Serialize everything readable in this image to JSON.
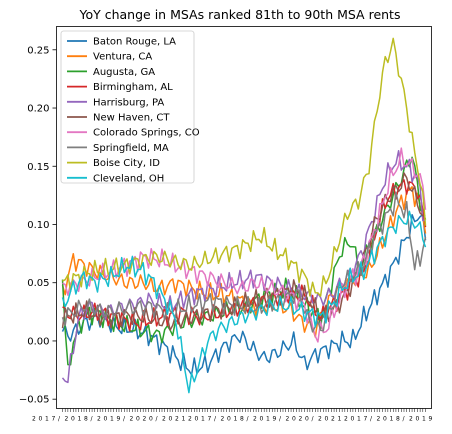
{
  "chart_data": {
    "type": "line",
    "title": "YoY change in MSAs ranked 81th to 90th MSA rents",
    "xlabel": "",
    "ylabel": "",
    "ylim": [
      -0.058,
      0.27
    ],
    "yticks": [
      -0.05,
      0.0,
      0.05,
      0.1,
      0.15,
      0.2,
      0.25
    ],
    "ytick_labels": [
      "−0.05",
      "0.00",
      "0.05",
      "0.10",
      "0.15",
      "0.20",
      "0.25"
    ],
    "x_count": 136,
    "x_tick_note": "dense unreadable date tick labels",
    "legend_position": "upper-left",
    "grid": false,
    "colors": [
      "#1f77b4",
      "#ff7f0e",
      "#2ca02c",
      "#d62728",
      "#9467bd",
      "#8c564b",
      "#e377c2",
      "#7f7f7f",
      "#bcbd22",
      "#17becf"
    ],
    "series": [
      {
        "name": "Baton Rouge, LA",
        "anchors": [
          [
            0,
            0.008
          ],
          [
            3,
            0.005
          ],
          [
            8,
            0.015
          ],
          [
            14,
            0.02
          ],
          [
            20,
            0.012
          ],
          [
            26,
            0.01
          ],
          [
            32,
            0.005
          ],
          [
            38,
            -0.005
          ],
          [
            44,
            -0.018
          ],
          [
            48,
            -0.025
          ],
          [
            54,
            -0.02
          ],
          [
            60,
            -0.005
          ],
          [
            66,
            0.005
          ],
          [
            70,
            -0.005
          ],
          [
            75,
            -0.015
          ],
          [
            80,
            -0.01
          ],
          [
            86,
            0.0
          ],
          [
            90,
            -0.02
          ],
          [
            95,
            -0.01
          ],
          [
            100,
            -0.005
          ],
          [
            104,
            0.0
          ],
          [
            108,
            0.0
          ],
          [
            112,
            0.02
          ],
          [
            117,
            0.04
          ],
          [
            122,
            0.06
          ],
          [
            126,
            0.08
          ],
          [
            130,
            0.1
          ],
          [
            133,
            0.11
          ],
          [
            135,
            0.09
          ]
        ]
      },
      {
        "name": "Ventura, CA",
        "anchors": [
          [
            0,
            0.04
          ],
          [
            4,
            0.07
          ],
          [
            8,
            0.065
          ],
          [
            12,
            0.06
          ],
          [
            18,
            0.055
          ],
          [
            24,
            0.05
          ],
          [
            30,
            0.05
          ],
          [
            36,
            0.045
          ],
          [
            42,
            0.05
          ],
          [
            48,
            0.045
          ],
          [
            54,
            0.04
          ],
          [
            60,
            0.04
          ],
          [
            66,
            0.035
          ],
          [
            72,
            0.03
          ],
          [
            78,
            0.03
          ],
          [
            84,
            0.028
          ],
          [
            90,
            0.015
          ],
          [
            94,
            0.01
          ],
          [
            98,
            0.03
          ],
          [
            102,
            0.045
          ],
          [
            106,
            0.05
          ],
          [
            110,
            0.055
          ],
          [
            114,
            0.06
          ],
          [
            118,
            0.08
          ],
          [
            122,
            0.1
          ],
          [
            126,
            0.12
          ],
          [
            130,
            0.13
          ],
          [
            133,
            0.115
          ],
          [
            135,
            0.1
          ]
        ]
      },
      {
        "name": "Augusta, GA",
        "anchors": [
          [
            0,
            0.055
          ],
          [
            2,
            -0.03
          ],
          [
            4,
            0.0
          ],
          [
            8,
            0.02
          ],
          [
            12,
            0.025
          ],
          [
            20,
            0.015
          ],
          [
            28,
            0.01
          ],
          [
            36,
            0.005
          ],
          [
            44,
            0.015
          ],
          [
            52,
            0.02
          ],
          [
            60,
            0.025
          ],
          [
            68,
            0.03
          ],
          [
            76,
            0.04
          ],
          [
            84,
            0.045
          ],
          [
            90,
            0.03
          ],
          [
            96,
            0.02
          ],
          [
            100,
            0.05
          ],
          [
            104,
            0.08
          ],
          [
            108,
            0.085
          ],
          [
            110,
            0.06
          ],
          [
            114,
            0.08
          ],
          [
            118,
            0.1
          ],
          [
            122,
            0.12
          ],
          [
            126,
            0.14
          ],
          [
            130,
            0.16
          ],
          [
            133,
            0.12
          ],
          [
            135,
            0.1
          ]
        ]
      },
      {
        "name": "Birmingham, AL",
        "anchors": [
          [
            0,
            0.025
          ],
          [
            6,
            0.022
          ],
          [
            12,
            0.025
          ],
          [
            20,
            0.02
          ],
          [
            28,
            0.015
          ],
          [
            36,
            0.02
          ],
          [
            44,
            0.025
          ],
          [
            52,
            0.02
          ],
          [
            60,
            0.025
          ],
          [
            68,
            0.03
          ],
          [
            76,
            0.035
          ],
          [
            84,
            0.04
          ],
          [
            90,
            0.04
          ],
          [
            96,
            0.02
          ],
          [
            100,
            0.03
          ],
          [
            104,
            0.04
          ],
          [
            108,
            0.05
          ],
          [
            112,
            0.06
          ],
          [
            116,
            0.09
          ],
          [
            120,
            0.12
          ],
          [
            124,
            0.13
          ],
          [
            128,
            0.135
          ],
          [
            132,
            0.13
          ],
          [
            135,
            0.1
          ]
        ]
      },
      {
        "name": "Harrisburg, PA",
        "anchors": [
          [
            0,
            -0.03
          ],
          [
            2,
            -0.033
          ],
          [
            6,
            0.02
          ],
          [
            10,
            0.03
          ],
          [
            16,
            0.025
          ],
          [
            24,
            0.03
          ],
          [
            32,
            0.035
          ],
          [
            40,
            0.03
          ],
          [
            48,
            0.04
          ],
          [
            56,
            0.045
          ],
          [
            64,
            0.05
          ],
          [
            72,
            0.055
          ],
          [
            78,
            0.05
          ],
          [
            84,
            0.045
          ],
          [
            90,
            0.04
          ],
          [
            96,
            0.035
          ],
          [
            100,
            0.04
          ],
          [
            104,
            0.05
          ],
          [
            108,
            0.06
          ],
          [
            112,
            0.08
          ],
          [
            116,
            0.11
          ],
          [
            120,
            0.14
          ],
          [
            124,
            0.155
          ],
          [
            128,
            0.15
          ],
          [
            132,
            0.14
          ],
          [
            135,
            0.1
          ]
        ]
      },
      {
        "name": "New Haven, CT",
        "anchors": [
          [
            0,
            0.02
          ],
          [
            8,
            0.025
          ],
          [
            16,
            0.02
          ],
          [
            24,
            0.022
          ],
          [
            32,
            0.02
          ],
          [
            40,
            0.015
          ],
          [
            48,
            0.02
          ],
          [
            56,
            0.025
          ],
          [
            64,
            0.03
          ],
          [
            72,
            0.035
          ],
          [
            80,
            0.04
          ],
          [
            86,
            0.045
          ],
          [
            92,
            0.035
          ],
          [
            96,
            0.02
          ],
          [
            100,
            0.025
          ],
          [
            104,
            0.035
          ],
          [
            108,
            0.05
          ],
          [
            112,
            0.07
          ],
          [
            116,
            0.1
          ],
          [
            120,
            0.12
          ],
          [
            124,
            0.13
          ],
          [
            128,
            0.14
          ],
          [
            132,
            0.12
          ],
          [
            135,
            0.1
          ]
        ]
      },
      {
        "name": "Colorado Springs, CO",
        "anchors": [
          [
            0,
            0.045
          ],
          [
            6,
            0.05
          ],
          [
            12,
            0.055
          ],
          [
            18,
            0.06
          ],
          [
            24,
            0.065
          ],
          [
            30,
            0.072
          ],
          [
            36,
            0.07
          ],
          [
            42,
            0.065
          ],
          [
            48,
            0.06
          ],
          [
            54,
            0.055
          ],
          [
            60,
            0.05
          ],
          [
            66,
            0.045
          ],
          [
            72,
            0.05
          ],
          [
            78,
            0.045
          ],
          [
            84,
            0.04
          ],
          [
            90,
            0.03
          ],
          [
            94,
            0.005
          ],
          [
            98,
            0.01
          ],
          [
            102,
            0.03
          ],
          [
            106,
            0.05
          ],
          [
            110,
            0.06
          ],
          [
            114,
            0.08
          ],
          [
            118,
            0.11
          ],
          [
            122,
            0.14
          ],
          [
            126,
            0.157
          ],
          [
            130,
            0.15
          ],
          [
            133,
            0.14
          ],
          [
            135,
            0.12
          ]
        ]
      },
      {
        "name": "Springfield, MA",
        "anchors": [
          [
            0,
            0.02
          ],
          [
            8,
            0.03
          ],
          [
            16,
            0.025
          ],
          [
            24,
            0.028
          ],
          [
            32,
            0.03
          ],
          [
            40,
            0.025
          ],
          [
            48,
            0.03
          ],
          [
            56,
            0.035
          ],
          [
            64,
            0.03
          ],
          [
            72,
            0.028
          ],
          [
            80,
            0.035
          ],
          [
            88,
            0.04
          ],
          [
            92,
            0.015
          ],
          [
            96,
            0.01
          ],
          [
            100,
            0.03
          ],
          [
            104,
            0.05
          ],
          [
            108,
            0.055
          ],
          [
            112,
            0.065
          ],
          [
            116,
            0.09
          ],
          [
            120,
            0.105
          ],
          [
            124,
            0.12
          ],
          [
            128,
            0.11
          ],
          [
            131,
            0.065
          ],
          [
            133,
            0.07
          ],
          [
            135,
            0.09
          ]
        ]
      },
      {
        "name": "Boise City, ID",
        "anchors": [
          [
            0,
            0.05
          ],
          [
            6,
            0.055
          ],
          [
            12,
            0.06
          ],
          [
            18,
            0.062
          ],
          [
            24,
            0.065
          ],
          [
            30,
            0.07
          ],
          [
            36,
            0.072
          ],
          [
            42,
            0.068
          ],
          [
            48,
            0.065
          ],
          [
            54,
            0.07
          ],
          [
            60,
            0.075
          ],
          [
            66,
            0.08
          ],
          [
            70,
            0.085
          ],
          [
            74,
            0.09
          ],
          [
            78,
            0.08
          ],
          [
            84,
            0.07
          ],
          [
            90,
            0.055
          ],
          [
            94,
            0.04
          ],
          [
            98,
            0.05
          ],
          [
            102,
            0.08
          ],
          [
            106,
            0.11
          ],
          [
            110,
            0.12
          ],
          [
            114,
            0.15
          ],
          [
            117,
            0.2
          ],
          [
            120,
            0.24
          ],
          [
            123,
            0.255
          ],
          [
            125,
            0.235
          ],
          [
            128,
            0.2
          ],
          [
            131,
            0.16
          ],
          [
            133,
            0.14
          ],
          [
            135,
            0.1
          ]
        ]
      },
      {
        "name": "Cleveland, OH",
        "anchors": [
          [
            0,
            0.03
          ],
          [
            4,
            0.045
          ],
          [
            8,
            0.055
          ],
          [
            12,
            0.05
          ],
          [
            18,
            0.055
          ],
          [
            24,
            0.065
          ],
          [
            30,
            0.06
          ],
          [
            34,
            0.05
          ],
          [
            38,
            0.035
          ],
          [
            42,
            0.02
          ],
          [
            44,
            -0.005
          ],
          [
            46,
            -0.028
          ],
          [
            47,
            -0.042
          ],
          [
            50,
            -0.025
          ],
          [
            54,
            0.0
          ],
          [
            58,
            0.01
          ],
          [
            62,
            0.015
          ],
          [
            66,
            0.02
          ],
          [
            72,
            0.025
          ],
          [
            78,
            0.03
          ],
          [
            84,
            0.03
          ],
          [
            90,
            0.025
          ],
          [
            96,
            0.02
          ],
          [
            100,
            0.03
          ],
          [
            104,
            0.045
          ],
          [
            108,
            0.055
          ],
          [
            112,
            0.06
          ],
          [
            116,
            0.075
          ],
          [
            120,
            0.09
          ],
          [
            124,
            0.1
          ],
          [
            128,
            0.105
          ],
          [
            132,
            0.1
          ],
          [
            135,
            0.085
          ]
        ]
      }
    ]
  }
}
